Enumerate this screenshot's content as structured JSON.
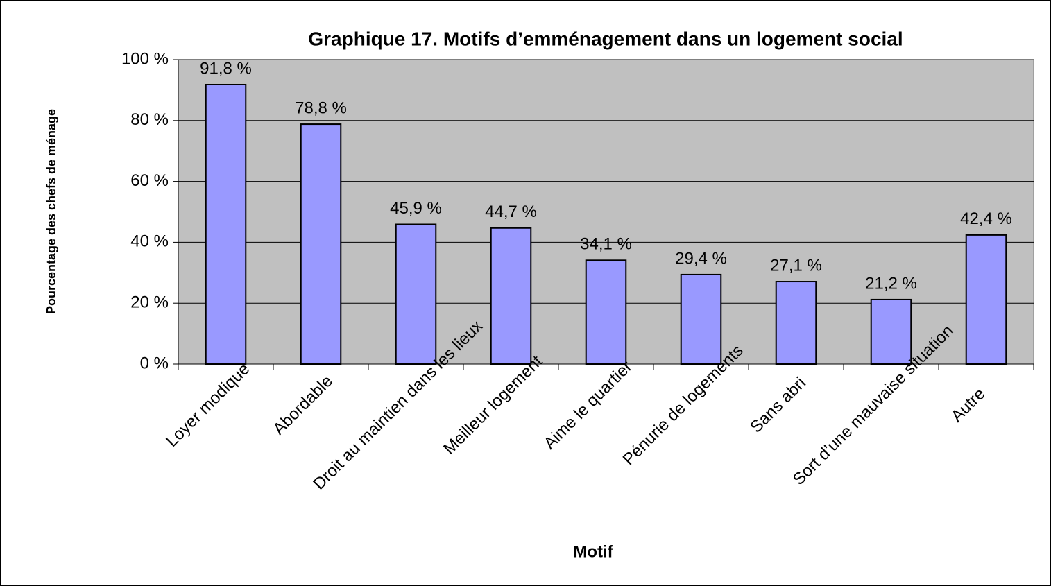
{
  "chart_data": {
    "type": "bar",
    "title": "Graphique 17. Motifs d’emménagement dans un logement social",
    "xlabel": "Motif",
    "ylabel": "Pourcentage des chefs de ménage",
    "categories": [
      "Loyer modique",
      "Abordable",
      "Droit au maintien dans les lieux",
      "Meilleur logement",
      "Aime le quartier",
      "Pénurie de logements",
      "Sans abri",
      "Sort d’une mauvaise situation",
      "Autre"
    ],
    "values": [
      91.8,
      78.8,
      45.9,
      44.7,
      34.1,
      29.4,
      27.1,
      21.2,
      42.4
    ],
    "value_labels": [
      "91,8 %",
      "78,8 %",
      "45,9 %",
      "44,7 %",
      "34,1 %",
      "29,4 %",
      "27,1 %",
      "21,2 %",
      "42,4 %"
    ],
    "color": "#9999ff",
    "ylim": [
      0,
      100
    ],
    "yticks": [
      {
        "value": 0,
        "label": "0 %"
      },
      {
        "value": 20,
        "label": "20 %"
      },
      {
        "value": 40,
        "label": "40 %"
      },
      {
        "value": 60,
        "label": "60 %"
      },
      {
        "value": 80,
        "label": "80 %"
      },
      {
        "value": 100,
        "label": "100 %"
      }
    ],
    "grid": true
  }
}
